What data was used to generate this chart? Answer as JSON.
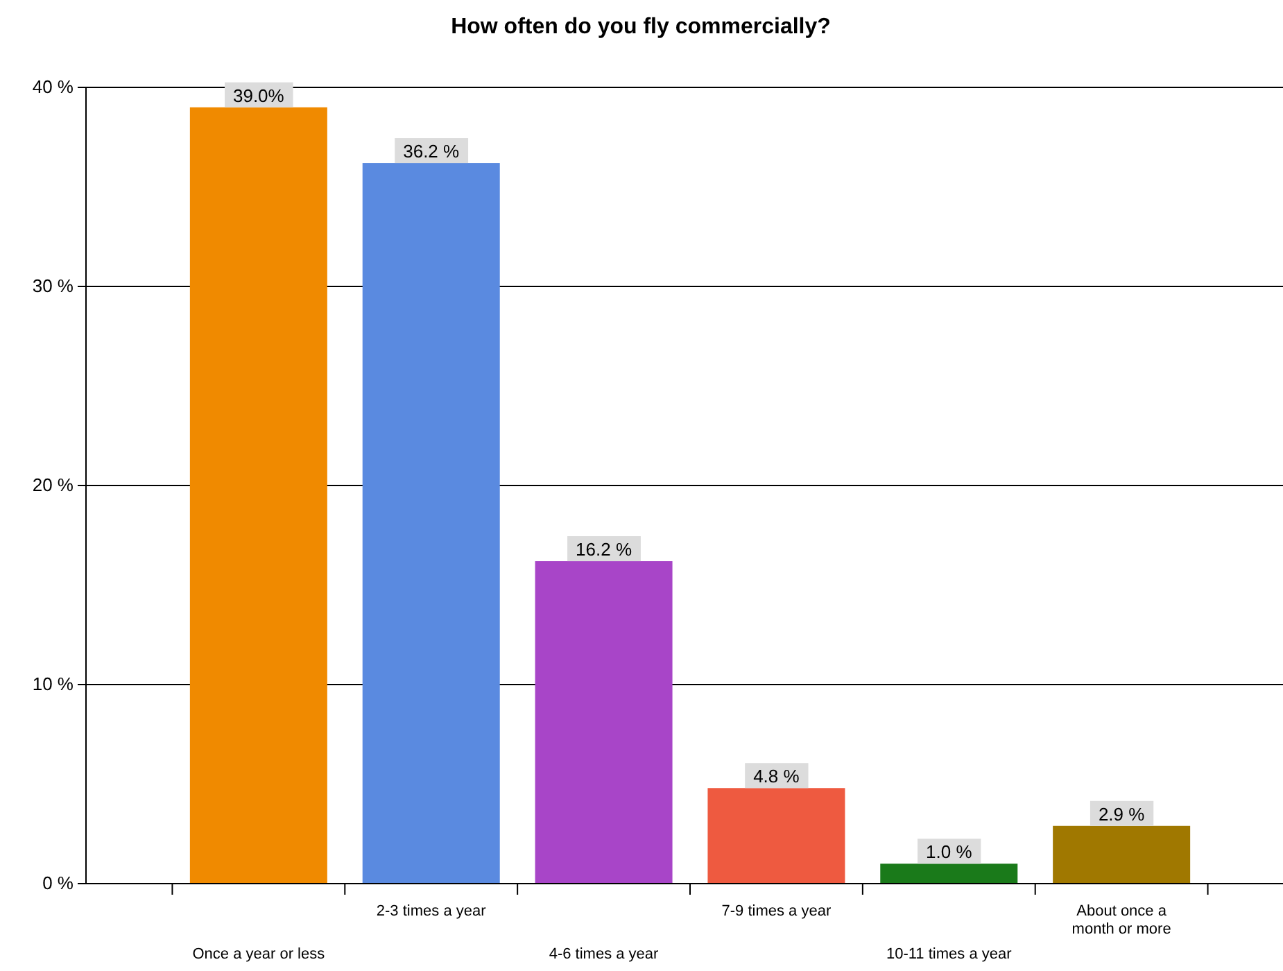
{
  "chart_data": {
    "type": "bar",
    "title": "How often do you fly commercially?",
    "categories": [
      "Once a year or less",
      "2-3 times a year",
      "4-6 times a year",
      "7-9 times a year",
      "10-11 times a year",
      "About once a month or more"
    ],
    "values": [
      39.0,
      36.2,
      16.2,
      4.8,
      1.0,
      2.9
    ],
    "colors": [
      "#f08a00",
      "#5a8ae0",
      "#a845c8",
      "#ee5a40",
      "#1a7a1a",
      "#a07800"
    ],
    "value_labels": [
      "39.0%",
      "36.2 %",
      "16.2 %",
      "4.8 %",
      "1.0 %",
      "2.9 %"
    ],
    "ylim": [
      0,
      40
    ],
    "yticks": [
      {
        "value": 0,
        "label": "0 %"
      },
      {
        "value": 10,
        "label": "10 %"
      },
      {
        "value": 20,
        "label": "20 %"
      },
      {
        "value": 30,
        "label": "30 %"
      },
      {
        "value": 40,
        "label": "40 %"
      }
    ],
    "grid": "y"
  }
}
